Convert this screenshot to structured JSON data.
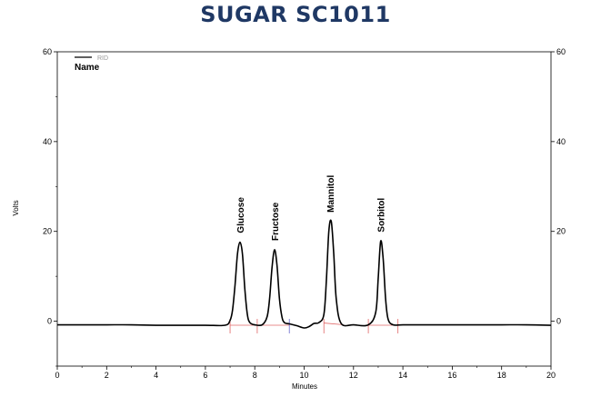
{
  "chart_data": {
    "type": "line",
    "title": "SUGAR SC1011",
    "xlabel": "Minutes",
    "ylabel": "Volts",
    "xlim": [
      0,
      20
    ],
    "ylim": [
      -10,
      60
    ],
    "x_ticks": [
      0,
      2,
      4,
      6,
      8,
      10,
      12,
      14,
      16,
      18,
      20
    ],
    "y_ticks": [
      0,
      20,
      40,
      60
    ],
    "legend": {
      "series_label": "RID",
      "header": "Name",
      "placement": "top-left"
    },
    "series": [
      {
        "name": "RID",
        "color": "#000000",
        "x": [
          0,
          1,
          2,
          3,
          4,
          5,
          6,
          6.8,
          7.0,
          7.1,
          7.2,
          7.3,
          7.4,
          7.5,
          7.6,
          7.7,
          7.8,
          8.0,
          8.3,
          8.5,
          8.6,
          8.7,
          8.8,
          8.9,
          9.0,
          9.1,
          9.2,
          9.4,
          9.7,
          10.0,
          10.2,
          10.4,
          10.6,
          10.8,
          10.9,
          11.0,
          11.1,
          11.2,
          11.3,
          11.5,
          12.0,
          12.6,
          12.9,
          13.0,
          13.1,
          13.2,
          13.3,
          13.4,
          13.6,
          14.0,
          15,
          16,
          17,
          18,
          19,
          20
        ],
        "y": [
          -0.8,
          -0.8,
          -0.8,
          -0.8,
          -0.9,
          -0.9,
          -0.9,
          -0.9,
          0.2,
          2.5,
          8.0,
          15.0,
          17.6,
          15.0,
          7.0,
          1.5,
          -0.3,
          -0.8,
          -0.8,
          1.0,
          5.0,
          12.0,
          15.9,
          12.5,
          5.0,
          1.0,
          -0.3,
          -0.6,
          -1.0,
          -1.5,
          -1.2,
          -0.5,
          -0.3,
          1.5,
          9.0,
          20.0,
          22.2,
          15.0,
          5.0,
          -0.5,
          -0.8,
          -0.8,
          2.0,
          9.5,
          17.8,
          14.0,
          5.0,
          0.5,
          -0.8,
          -0.8,
          -0.8,
          -0.8,
          -0.8,
          -0.8,
          -0.8,
          -0.9
        ]
      }
    ],
    "peaks": [
      {
        "name": "Glucose",
        "x": 7.4,
        "y": 17.6
      },
      {
        "name": "Fructose",
        "x": 8.8,
        "y": 15.9
      },
      {
        "name": "Mannitol",
        "x": 11.05,
        "y": 22.2
      },
      {
        "name": "Sorbitol",
        "x": 13.1,
        "y": 17.8
      }
    ],
    "baseline_segments": [
      {
        "color": "#e06666",
        "x": [
          7.0,
          8.1
        ],
        "y": [
          -0.9,
          -0.9
        ]
      },
      {
        "color": "#e06666",
        "x": [
          8.1,
          9.4
        ],
        "y": [
          -0.9,
          -0.9
        ]
      },
      {
        "color": "#e06666",
        "x": [
          10.8,
          11.6
        ],
        "y": [
          -0.4,
          -0.8
        ]
      },
      {
        "color": "#e06666",
        "x": [
          12.6,
          13.8
        ],
        "y": [
          -0.9,
          -0.9
        ]
      }
    ],
    "baseline_markers": [
      {
        "x": 7.0,
        "color": "#e06666"
      },
      {
        "x": 8.1,
        "color": "#e06666"
      },
      {
        "x": 9.4,
        "color": "#6666cc"
      },
      {
        "x": 10.8,
        "color": "#e06666"
      },
      {
        "x": 12.6,
        "color": "#e06666"
      },
      {
        "x": 13.8,
        "color": "#e06666"
      }
    ]
  }
}
